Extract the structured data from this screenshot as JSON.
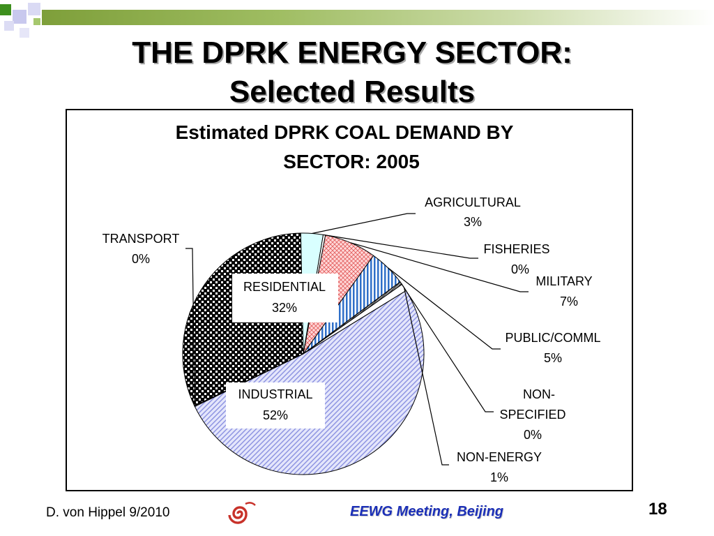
{
  "slide": {
    "title_line1": "THE DPRK ENERGY SECTOR:",
    "title_line2": "Selected Results"
  },
  "footer": {
    "author": "D. von Hippel  9/2010",
    "meeting": "EEWG Meeting, Beijing",
    "page": "18"
  },
  "chart_data": {
    "type": "pie",
    "title": "Estimated DPRK COAL DEMAND BY SECTOR: 2005",
    "slices": [
      {
        "label": "RESIDENTIAL",
        "value": 32,
        "percent": "32%"
      },
      {
        "label": "AGRICULTURAL",
        "value": 3,
        "percent": "3%"
      },
      {
        "label": "FISHERIES",
        "value": 0.3,
        "percent": "0%"
      },
      {
        "label": "MILITARY",
        "value": 7,
        "percent": "7%"
      },
      {
        "label": "PUBLIC/COMML",
        "value": 5,
        "percent": "5%"
      },
      {
        "label": "NON-SPECIFIED",
        "value": 0.4,
        "percent": "0%"
      },
      {
        "label": "NON-ENERGY",
        "value": 1,
        "percent": "1%"
      },
      {
        "label": "INDUSTRIAL",
        "value": 52,
        "percent": "52%"
      },
      {
        "label": "TRANSPORT",
        "value": 0.1,
        "percent": "0%"
      }
    ],
    "label_lines": {
      "non_specified_1": "NON-",
      "non_specified_2": "SPECIFIED"
    }
  }
}
